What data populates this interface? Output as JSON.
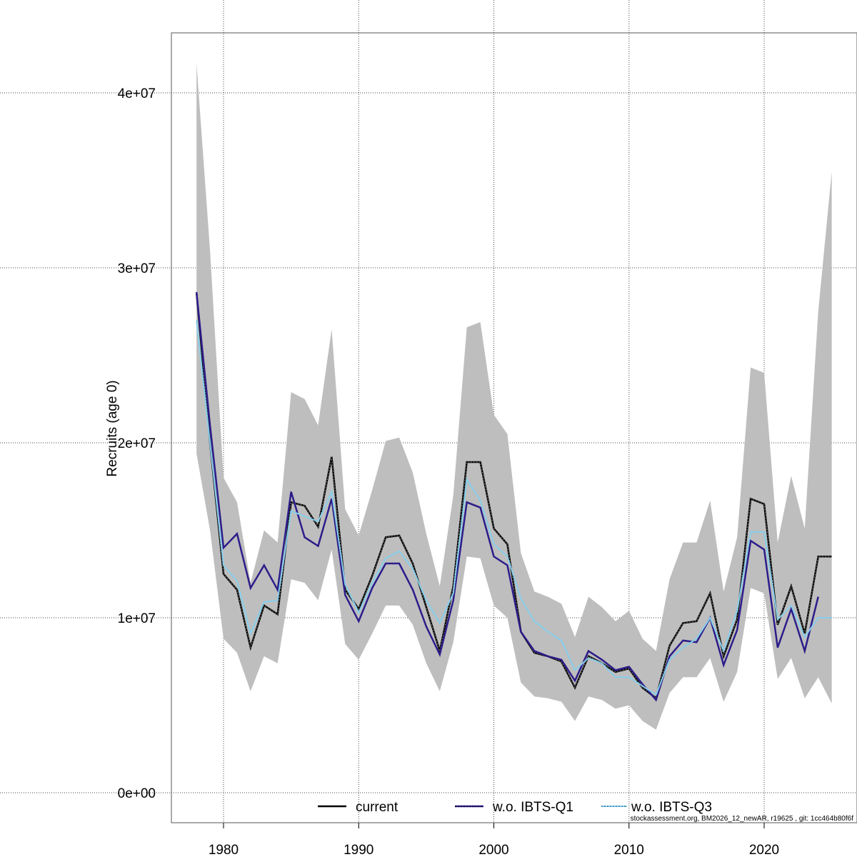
{
  "chart_data": {
    "type": "line",
    "title": "",
    "xlabel": "",
    "ylabel": "Recruits (age 0)",
    "value_multiplier": 1000000,
    "xlim": [
      1976,
      2026.8
    ],
    "ylim": [
      -1.8,
      43.4
    ],
    "grid": true,
    "x_ticks": [
      1980,
      1990,
      2000,
      2010,
      2020
    ],
    "x_tick_labels": [
      "1980",
      "1990",
      "2000",
      "2010",
      "2020"
    ],
    "y_ticks": [
      0,
      10,
      20,
      30,
      40
    ],
    "y_tick_labels": [
      "0e+00",
      "1e+07",
      "2e+07",
      "3e+07",
      "4e+07"
    ],
    "legend_placement": "bottom",
    "x": [
      1978,
      1979,
      1980,
      1981,
      1982,
      1983,
      1984,
      1985,
      1986,
      1987,
      1988,
      1989,
      1990,
      1991,
      1992,
      1993,
      1994,
      1995,
      1996,
      1997,
      1998,
      1999,
      2000,
      2001,
      2002,
      2003,
      2004,
      2005,
      2006,
      2007,
      2008,
      2009,
      2010,
      2011,
      2012,
      2013,
      2014,
      2015,
      2016,
      2017,
      2018,
      2019,
      2020,
      2021,
      2022,
      2023,
      2024,
      2025
    ],
    "band": {
      "name": "current confidence band",
      "color": "#bebebe",
      "upper": [
        41.7,
        31.0,
        18.0,
        16.6,
        12.0,
        15.0,
        14.3,
        22.9,
        22.5,
        21.0,
        26.5,
        16.2,
        14.7,
        17.3,
        20.1,
        20.3,
        18.3,
        14.8,
        11.8,
        17.0,
        26.6,
        26.9,
        21.6,
        20.5,
        13.7,
        11.5,
        11.2,
        10.8,
        8.9,
        11.2,
        10.6,
        9.8,
        10.4,
        8.8,
        8.1,
        12.2,
        14.3,
        14.3,
        16.7,
        11.5,
        14.6,
        24.3,
        24.0,
        14.3,
        18.1,
        15.1,
        27.5,
        35.5
      ],
      "lower": [
        19.4,
        15.0,
        8.8,
        8.0,
        5.8,
        7.8,
        7.4,
        12.2,
        12.0,
        11.0,
        13.9,
        8.5,
        7.6,
        9.1,
        10.7,
        10.7,
        9.6,
        7.4,
        5.8,
        8.6,
        13.5,
        13.4,
        10.7,
        10.0,
        6.3,
        5.5,
        5.4,
        5.2,
        4.1,
        5.5,
        5.3,
        4.8,
        5.0,
        4.1,
        3.6,
        5.7,
        6.6,
        6.6,
        7.7,
        5.2,
        6.9,
        11.7,
        11.4,
        6.5,
        7.7,
        5.4,
        6.6,
        5.1
      ]
    },
    "series": [
      {
        "name": "current",
        "color": "#000000",
        "values": [
          28.6,
          20.0,
          12.5,
          11.6,
          8.3,
          10.7,
          10.2,
          16.6,
          16.4,
          15.2,
          19.2,
          11.6,
          10.5,
          12.4,
          14.6,
          14.7,
          13.1,
          10.6,
          8.1,
          11.8,
          18.9,
          18.9,
          15.1,
          14.2,
          9.2,
          8.0,
          7.8,
          7.5,
          6.0,
          7.8,
          7.4,
          6.9,
          7.1,
          6.0,
          5.4,
          8.4,
          9.7,
          9.8,
          11.4,
          7.8,
          9.9,
          16.8,
          16.5,
          9.6,
          11.8,
          9.1,
          13.5,
          13.5
        ]
      },
      {
        "name": "w.o. IBTS-Q1",
        "color": "#2c1d8a",
        "values": [
          28.6,
          21.0,
          14.0,
          14.8,
          11.7,
          13.0,
          11.6,
          17.2,
          14.6,
          14.1,
          16.8,
          11.3,
          9.8,
          11.7,
          13.1,
          13.1,
          11.6,
          9.5,
          7.9,
          11.0,
          16.6,
          16.3,
          13.5,
          13.0,
          9.2,
          8.1,
          7.8,
          7.6,
          6.4,
          8.1,
          7.6,
          7.0,
          7.2,
          6.2,
          5.3,
          7.8,
          8.7,
          8.6,
          10.0,
          7.3,
          9.3,
          14.4,
          13.9,
          8.3,
          10.5,
          8.1,
          11.2,
          null
        ]
      },
      {
        "name": "w.o. IBTS-Q3",
        "color": "#87ceeb",
        "values": [
          27.0,
          20.0,
          13.0,
          12.1,
          9.1,
          10.9,
          11.0,
          16.1,
          15.8,
          15.5,
          17.2,
          11.9,
          10.3,
          12.0,
          13.4,
          13.8,
          12.8,
          11.0,
          9.7,
          11.4,
          17.9,
          16.7,
          14.2,
          13.5,
          11.1,
          9.8,
          9.2,
          8.7,
          7.0,
          7.7,
          7.4,
          6.6,
          6.6,
          6.1,
          5.6,
          7.6,
          8.3,
          8.8,
          10.0,
          8.1,
          10.4,
          14.9,
          14.9,
          9.9,
          10.7,
          8.9,
          10.0,
          10.0
        ]
      }
    ],
    "footnote": "stockassessment.org, BM2026_12_newAR, r19625 , git: 1cc464b80f6f"
  }
}
